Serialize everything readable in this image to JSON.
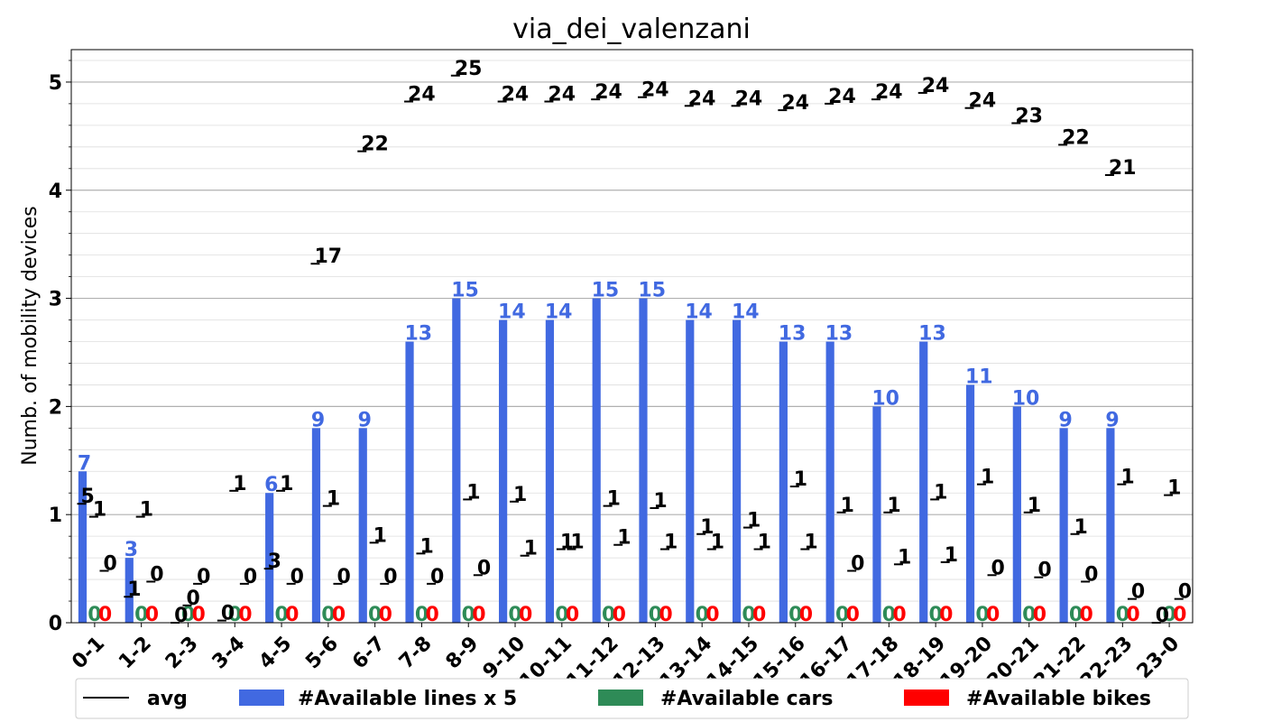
{
  "chart_data": {
    "type": "bar",
    "title": "via_dei_valenzani",
    "ylabel": "Numb. of mobility devices",
    "xlabel": "",
    "ylim": [
      0,
      5.3
    ],
    "yticks": [
      "0",
      "1",
      "2",
      "3",
      "4",
      "5"
    ],
    "grid": true,
    "legend_position": "bottom",
    "categories": [
      "0-1",
      "1-2",
      "2-3",
      "3-4",
      "4-5",
      "5-6",
      "6-7",
      "7-8",
      "8-9",
      "9-10",
      "10-11",
      "11-12",
      "12-13",
      "13-14",
      "14-15",
      "15-16",
      "16-17",
      "17-18",
      "18-19",
      "19-20",
      "20-21",
      "21-22",
      "22-23",
      "23-0"
    ],
    "series": [
      {
        "name": "#Available lines x 5",
        "color": "#4169e1",
        "values": [
          1.4,
          0.6,
          0,
          0,
          1.2,
          1.8,
          1.8,
          2.6,
          3.0,
          2.8,
          2.8,
          3.0,
          3.0,
          2.8,
          2.8,
          2.6,
          2.6,
          2.0,
          2.6,
          2.2,
          2.0,
          1.8,
          1.8,
          0
        ],
        "labels": [
          "7",
          "3",
          "",
          "",
          "6",
          "9",
          "9",
          "13",
          "15",
          "14",
          "14",
          "15",
          "15",
          "14",
          "14",
          "13",
          "13",
          "10",
          "13",
          "11",
          "10",
          "9",
          "9",
          ""
        ]
      },
      {
        "name": "#Available cars",
        "color": "#2e8b57",
        "values": [
          0,
          0,
          0,
          0,
          0,
          0,
          0,
          0,
          0,
          0,
          0,
          0,
          0,
          0,
          0,
          0,
          0,
          0,
          0,
          0,
          0,
          0,
          0,
          0
        ],
        "labels": [
          "0",
          "0",
          "0",
          "0",
          "0",
          "0",
          "0",
          "0",
          "0",
          "0",
          "0",
          "0",
          "0",
          "0",
          "0",
          "0",
          "0",
          "0",
          "0",
          "0",
          "0",
          "0",
          "0",
          "0"
        ]
      },
      {
        "name": "#Available bikes",
        "color": "#ff0000",
        "values": [
          0,
          0,
          0,
          0,
          0,
          0,
          0,
          0,
          0,
          0,
          0,
          0,
          0,
          0,
          0,
          0,
          0,
          0,
          0,
          0,
          0,
          0,
          0,
          0
        ],
        "labels": [
          "0",
          "0",
          "0",
          "0",
          "0",
          "0",
          "0",
          "0",
          "0",
          "0",
          "0",
          "0",
          "0",
          "0",
          "0",
          "0",
          "0",
          "0",
          "0",
          "0",
          "0",
          "0",
          "0",
          "0"
        ]
      }
    ],
    "avg_markers": {
      "name": "avg",
      "color": "#000000",
      "points": [
        {
          "v": 1.1,
          "t": "5"
        },
        {
          "v": 0.98,
          "t": "1"
        },
        {
          "v": 0.48,
          "t": "0"
        },
        {
          "v": 0.24,
          "t": "1"
        },
        {
          "v": 0.98,
          "t": "1"
        },
        {
          "v": 0.38,
          "t": "0"
        },
        {
          "v": 0.0,
          "t": "0"
        },
        {
          "v": 0.16,
          "t": "0"
        },
        {
          "v": 0.36,
          "t": "0"
        },
        {
          "v": 0.02,
          "t": "0"
        },
        {
          "v": 1.22,
          "t": "1"
        },
        {
          "v": 0.36,
          "t": "0"
        },
        {
          "v": 0.5,
          "t": "3"
        },
        {
          "v": 1.22,
          "t": "1"
        },
        {
          "v": 0.36,
          "t": "0"
        },
        {
          "v": 3.32,
          "t": "17"
        },
        {
          "v": 1.08,
          "t": "1"
        },
        {
          "v": 0.36,
          "t": "0"
        },
        {
          "v": 4.36,
          "t": "22"
        },
        {
          "v": 0.74,
          "t": "1"
        },
        {
          "v": 0.36,
          "t": "0"
        },
        {
          "v": 4.82,
          "t": "24"
        },
        {
          "v": 0.64,
          "t": "1"
        },
        {
          "v": 0.36,
          "t": "0"
        },
        {
          "v": 5.06,
          "t": "25"
        },
        {
          "v": 1.14,
          "t": "1"
        },
        {
          "v": 0.44,
          "t": "0"
        },
        {
          "v": 4.82,
          "t": "24"
        },
        {
          "v": 1.12,
          "t": "1"
        },
        {
          "v": 0.62,
          "t": "1"
        },
        {
          "v": 4.82,
          "t": "24"
        },
        {
          "v": 0.68,
          "t": "1"
        },
        {
          "v": 0.68,
          "t": "1"
        },
        {
          "v": 4.84,
          "t": "24"
        },
        {
          "v": 1.08,
          "t": "1"
        },
        {
          "v": 0.72,
          "t": "1"
        },
        {
          "v": 4.86,
          "t": "24"
        },
        {
          "v": 1.06,
          "t": "1"
        },
        {
          "v": 0.68,
          "t": "1"
        },
        {
          "v": 4.78,
          "t": "24"
        },
        {
          "v": 0.82,
          "t": "1"
        },
        {
          "v": 0.68,
          "t": "1"
        },
        {
          "v": 4.78,
          "t": "24"
        },
        {
          "v": 0.88,
          "t": "1"
        },
        {
          "v": 0.68,
          "t": "1"
        },
        {
          "v": 4.74,
          "t": "24"
        },
        {
          "v": 1.26,
          "t": "1"
        },
        {
          "v": 0.68,
          "t": "1"
        },
        {
          "v": 4.8,
          "t": "24"
        },
        {
          "v": 1.02,
          "t": "1"
        },
        {
          "v": 0.48,
          "t": "0"
        },
        {
          "v": 4.84,
          "t": "24"
        },
        {
          "v": 1.02,
          "t": "1"
        },
        {
          "v": 0.54,
          "t": "1"
        },
        {
          "v": 4.9,
          "t": "24"
        },
        {
          "v": 1.14,
          "t": "1"
        },
        {
          "v": 0.56,
          "t": "1"
        },
        {
          "v": 4.76,
          "t": "24"
        },
        {
          "v": 1.28,
          "t": "1"
        },
        {
          "v": 0.44,
          "t": "0"
        },
        {
          "v": 4.62,
          "t": "23"
        },
        {
          "v": 1.02,
          "t": "1"
        },
        {
          "v": 0.42,
          "t": "0"
        },
        {
          "v": 4.42,
          "t": "22"
        },
        {
          "v": 0.82,
          "t": "1"
        },
        {
          "v": 0.38,
          "t": "0"
        },
        {
          "v": 4.14,
          "t": "21"
        },
        {
          "v": 1.28,
          "t": "1"
        },
        {
          "v": 0.22,
          "t": "0"
        },
        {
          "v": 0.0,
          "t": "0"
        },
        {
          "v": 1.18,
          "t": "1"
        },
        {
          "v": 0.22,
          "t": "0"
        }
      ]
    }
  },
  "legend": {
    "avg_label": "avg",
    "lines_label": "#Available lines x 5",
    "cars_label": "#Available cars",
    "bikes_label": "#Available bikes"
  }
}
